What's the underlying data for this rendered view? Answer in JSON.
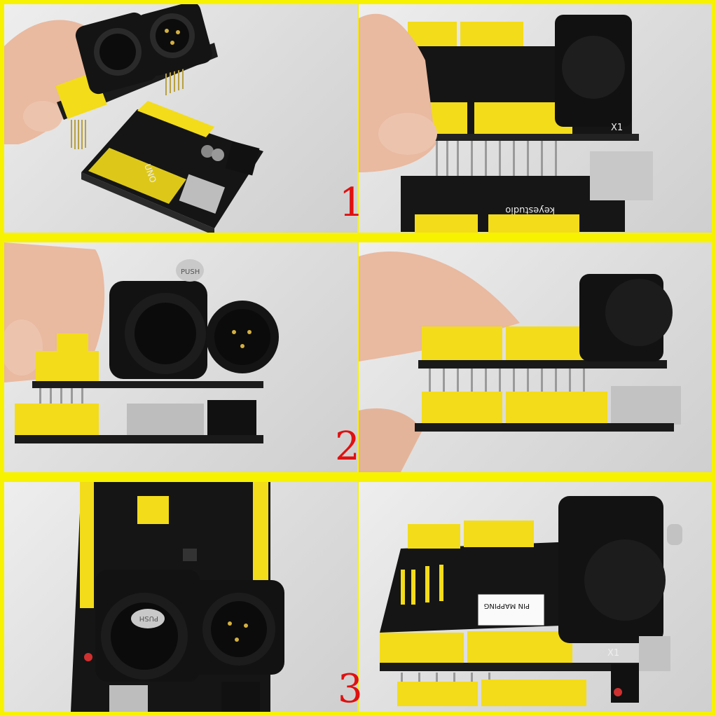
{
  "step_numbers": [
    "1",
    "2",
    "3"
  ],
  "colors": {
    "frame": "#f7f200",
    "step_number": "#e01010",
    "board_pcb": "#151515",
    "header_yellow": "#f3dc1a",
    "connector": "#111111",
    "skin": "#e9b9a0"
  },
  "board_text": {
    "brand": "keyestudio",
    "model": "UNO",
    "connector_label": "X1",
    "pin_mapping": "PIN MAPPING",
    "push_tab": "PUSH"
  }
}
